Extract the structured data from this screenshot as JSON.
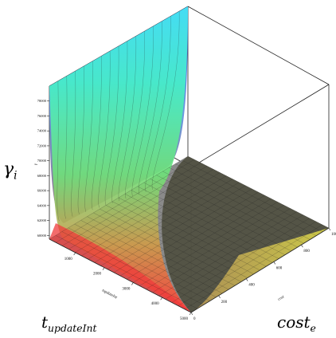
{
  "chart_data": {
    "type": "surface",
    "z_axis": {
      "label_base": "γ",
      "label_sub": "i",
      "small_label": "γ",
      "ticks": [
        60000,
        62000,
        64000,
        66000,
        68000,
        70000,
        72000,
        74000,
        76000,
        78000
      ],
      "zlim": [
        59500,
        80000
      ]
    },
    "x_axis": {
      "label_base": "t",
      "label_sub": "updateInt",
      "small_label": "tupdateInt",
      "ticks": [
        1000,
        2000,
        3000,
        4000,
        5000
      ],
      "xlim": [
        100,
        5000
      ]
    },
    "y_axis": {
      "label_base": "cost",
      "label_sub": "e",
      "small_label": "cost",
      "ticks": [
        0,
        200,
        400,
        600,
        800,
        1000
      ],
      "ylim": [
        0,
        1000
      ]
    },
    "series": [
      {
        "type": "surface",
        "z_at_corners": [
          {
            "x": 100,
            "y": 0,
            "z": 80000
          },
          {
            "x": 100,
            "y": 1000,
            "z": 80000
          },
          {
            "x": 5000,
            "y": 0,
            "z": 60000
          },
          {
            "x": 5000,
            "y": 1000,
            "z": 60000
          }
        ]
      },
      {
        "type": "plane",
        "z": 60000
      }
    ],
    "grid": true
  }
}
